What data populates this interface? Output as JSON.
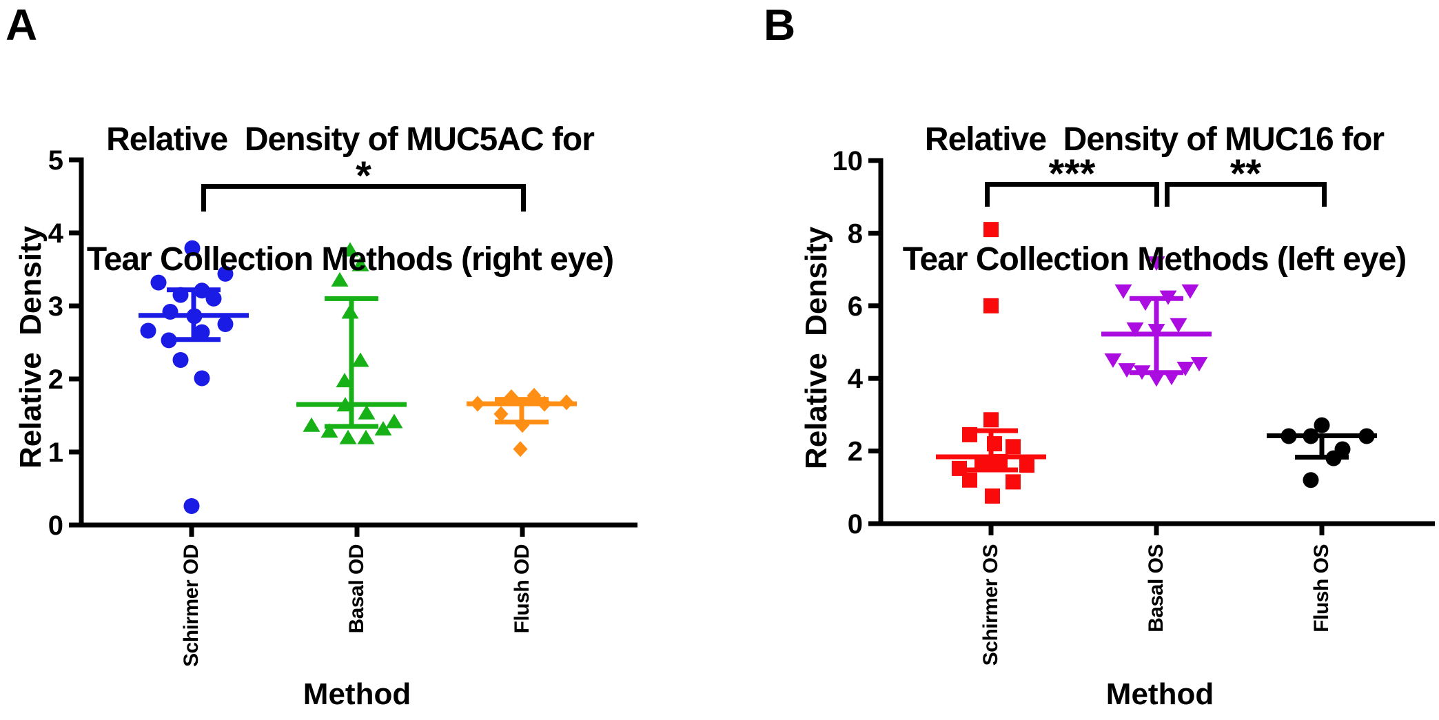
{
  "panels": [
    {
      "letter": "A"
    },
    {
      "letter": "B"
    }
  ],
  "chart_data": [
    {
      "type": "scatter",
      "panel": "A",
      "title_lines": [
        "Relative  Density of MUC5AC for",
        "Tear Collection Methods (right eye)"
      ],
      "xlabel": "Method",
      "ylabel": "Relative  Density",
      "ylim": [
        0,
        5
      ],
      "yticks": [
        0,
        1,
        2,
        3,
        4,
        5
      ],
      "grid": false,
      "legend": "none",
      "categories": [
        "Schirmer OD",
        "Basal OD",
        "Flush OD"
      ],
      "series": [
        {
          "name": "Schirmer OD",
          "marker": "circle",
          "color": "#1b1be6",
          "points": [
            [
              -2,
              3.79
            ],
            [
              46,
              3.44
            ],
            [
              -51,
              3.32
            ],
            [
              12,
              3.21
            ],
            [
              -19,
              3.15
            ],
            [
              29,
              3.1
            ],
            [
              -34,
              2.92
            ],
            [
              1,
              2.86
            ],
            [
              46,
              2.75
            ],
            [
              -66,
              2.66
            ],
            [
              12,
              2.64
            ],
            [
              -36,
              2.53
            ],
            [
              -19,
              2.26
            ],
            [
              12,
              2.01
            ],
            [
              -3,
              0.26
            ]
          ],
          "error": {
            "center": 2.87,
            "upper": 3.22,
            "lower": 2.54
          }
        },
        {
          "name": "Basal OD",
          "marker": "triangle-up",
          "color": "#17b117",
          "points": [
            [
              -2,
              3.77
            ],
            [
              13,
              3.57
            ],
            [
              -17,
              3.36
            ],
            [
              -2,
              2.92
            ],
            [
              13,
              2.26
            ],
            [
              -10,
              1.98
            ],
            [
              -9,
              1.65
            ],
            [
              22,
              1.54
            ],
            [
              -58,
              1.37
            ],
            [
              -32,
              1.29
            ],
            [
              -5,
              1.2
            ],
            [
              21,
              1.2
            ],
            [
              46,
              1.32
            ],
            [
              62,
              1.42
            ]
          ],
          "error": {
            "center": 1.65,
            "upper": 3.1,
            "lower": 1.35
          }
        },
        {
          "name": "Flush OD",
          "marker": "diamond",
          "color": "#ff8e15",
          "points": [
            [
              -64,
              1.66
            ],
            [
              -15,
              1.75
            ],
            [
              18,
              1.77
            ],
            [
              33,
              1.66
            ],
            [
              65,
              1.68
            ],
            [
              -30,
              1.52
            ],
            [
              1,
              1.37
            ],
            [
              -2,
              1.04
            ]
          ],
          "error": {
            "center": 1.66,
            "upper": 1.72,
            "lower": 1.41
          }
        }
      ],
      "significance": [
        {
          "label": "*",
          "between": [
            "Schirmer OD",
            "Flush OD"
          ]
        }
      ]
    },
    {
      "type": "scatter",
      "panel": "B",
      "title_lines": [
        "Relative  Density of MUC16 for",
        "Tear Collection Methods (left eye)"
      ],
      "xlabel": "Method",
      "ylabel": "Relative  Density",
      "ylim": [
        0,
        10
      ],
      "yticks": [
        0,
        2,
        4,
        6,
        8,
        10
      ],
      "grid": false,
      "legend": "none",
      "categories": [
        "Schirmer OS",
        "Basal OS",
        "Flush OS"
      ],
      "series": [
        {
          "name": "Schirmer OS",
          "marker": "square",
          "color": "#fa0a0a",
          "points": [
            [
              0,
              8.1
            ],
            [
              0,
              6.0
            ],
            [
              0,
              2.86
            ],
            [
              -31,
              2.45
            ],
            [
              5,
              2.2
            ],
            [
              32,
              2.12
            ],
            [
              -13,
              1.69
            ],
            [
              13,
              1.71
            ],
            [
              -46,
              1.52
            ],
            [
              52,
              1.61
            ],
            [
              -31,
              1.2
            ],
            [
              32,
              1.15
            ],
            [
              2,
              0.76
            ]
          ],
          "error": {
            "center": 1.84,
            "upper": 2.56,
            "lower": 1.48
          }
        },
        {
          "name": "Basal OS",
          "marker": "triangle-down",
          "color": "#ab0ce0",
          "points": [
            [
              0,
              7.17
            ],
            [
              -48,
              6.4
            ],
            [
              -16,
              6.07
            ],
            [
              17,
              6.23
            ],
            [
              49,
              6.4
            ],
            [
              -31,
              5.35
            ],
            [
              0,
              5.31
            ],
            [
              32,
              5.47
            ],
            [
              -63,
              4.5
            ],
            [
              -43,
              4.23
            ],
            [
              -21,
              4.17
            ],
            [
              0,
              3.98
            ],
            [
              22,
              4.02
            ],
            [
              42,
              4.27
            ],
            [
              62,
              4.4
            ]
          ],
          "error": {
            "center": 5.22,
            "upper": 6.2,
            "lower": 4.16
          }
        },
        {
          "name": "Flush OS",
          "marker": "circle",
          "color": "#000000",
          "points": [
            [
              -48,
              2.41
            ],
            [
              -16,
              2.41
            ],
            [
              0,
              2.71
            ],
            [
              65,
              2.41
            ],
            [
              30,
              2.05
            ],
            [
              17,
              1.8
            ],
            [
              -16,
              1.2
            ]
          ],
          "error": {
            "center": 2.42,
            "upper": null,
            "lower": 1.83
          }
        }
      ],
      "significance": [
        {
          "label": "***",
          "between": [
            "Schirmer OS",
            "Basal OS"
          ]
        },
        {
          "label": "**",
          "between": [
            "Basal OS",
            "Flush OS"
          ]
        }
      ]
    }
  ]
}
